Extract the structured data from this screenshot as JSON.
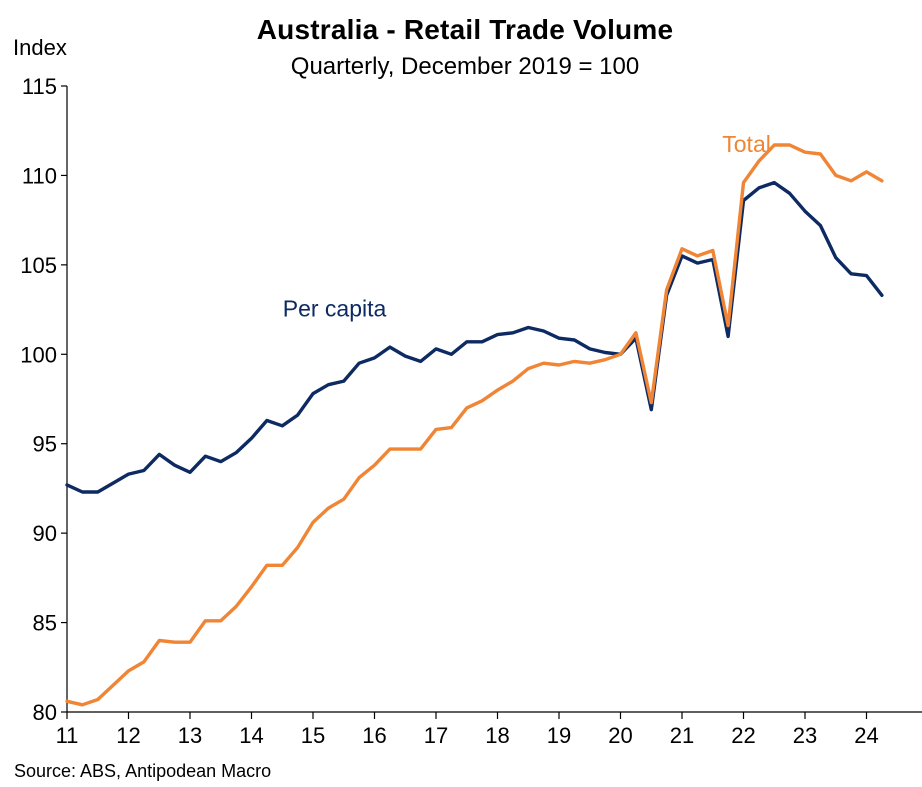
{
  "chart_data": {
    "type": "line",
    "title": "Australia - Retail Trade Volume",
    "subtitle": "Quarterly, December 2019 = 100",
    "ylabel": "Index",
    "source": "Source: ABS, Antipodean Macro",
    "ylim": [
      80,
      115
    ],
    "yticks": [
      80,
      85,
      90,
      95,
      100,
      105,
      110,
      115
    ],
    "xlim": [
      2011,
      2025
    ],
    "xticks": [
      {
        "value": 2011,
        "label": "11"
      },
      {
        "value": 2012,
        "label": "12"
      },
      {
        "value": 2013,
        "label": "13"
      },
      {
        "value": 2014,
        "label": "14"
      },
      {
        "value": 2015,
        "label": "15"
      },
      {
        "value": 2016,
        "label": "16"
      },
      {
        "value": 2017,
        "label": "17"
      },
      {
        "value": 2018,
        "label": "18"
      },
      {
        "value": 2019,
        "label": "19"
      },
      {
        "value": 2020,
        "label": "20"
      },
      {
        "value": 2021,
        "label": "21"
      },
      {
        "value": 2022,
        "label": "22"
      },
      {
        "value": 2023,
        "label": "23"
      },
      {
        "value": 2024,
        "label": "24"
      }
    ],
    "x_start": 2011,
    "x_step": 0.25,
    "grid": false,
    "series": [
      {
        "name": "Per capita",
        "color": "#0d2a63",
        "values": [
          92.7,
          92.3,
          92.3,
          92.8,
          93.3,
          93.5,
          94.4,
          93.8,
          93.4,
          94.3,
          94.0,
          94.5,
          95.3,
          96.3,
          96.0,
          96.6,
          97.8,
          98.3,
          98.5,
          99.5,
          99.8,
          100.4,
          99.9,
          99.6,
          100.3,
          100.0,
          100.7,
          100.7,
          101.1,
          101.2,
          101.5,
          101.3,
          100.9,
          100.8,
          100.3,
          100.1,
          100.0,
          100.9,
          96.9,
          103.3,
          105.5,
          105.1,
          105.3,
          101.0,
          108.6,
          109.3,
          109.6,
          109.0,
          108.0,
          107.2,
          105.4,
          104.5,
          104.4,
          103.3
        ]
      },
      {
        "name": "Total",
        "color": "#ef8535",
        "values": [
          80.6,
          80.4,
          80.7,
          81.5,
          82.3,
          82.8,
          84.0,
          83.9,
          83.9,
          85.1,
          85.1,
          85.9,
          87.0,
          88.2,
          88.2,
          89.2,
          90.6,
          91.4,
          91.9,
          93.1,
          93.8,
          94.7,
          94.7,
          94.7,
          95.8,
          95.9,
          97.0,
          97.4,
          98.0,
          98.5,
          99.2,
          99.5,
          99.4,
          99.6,
          99.5,
          99.7,
          100.0,
          101.2,
          97.3,
          103.6,
          105.9,
          105.5,
          105.8,
          101.6,
          109.6,
          110.8,
          111.7,
          111.7,
          111.3,
          111.2,
          110.0,
          109.7,
          110.2,
          109.7
        ]
      }
    ],
    "annotations": [
      {
        "text": "Per capita",
        "series": "Per capita",
        "x": 2015.35,
        "y": 102.1
      },
      {
        "text": "Total",
        "series": "Total",
        "x": 2022.05,
        "y": 111.3
      }
    ]
  }
}
